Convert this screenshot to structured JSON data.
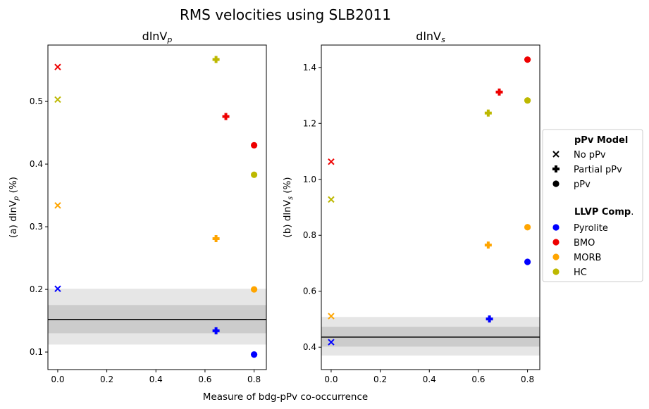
{
  "figure": {
    "title": "RMS velocities using SLB2011",
    "xlabel": "Measure of bdg-pPv co-occurrence"
  },
  "legend": {
    "marker_header": "pPv Model",
    "markers": [
      {
        "marker": "x",
        "label": "No pPv"
      },
      {
        "marker": "plus",
        "label": "Partial pPv"
      },
      {
        "marker": "circle",
        "label": "pPv"
      }
    ],
    "color_header_bold": "LLVP Comp",
    "color_header_suffix": ".",
    "colors": [
      {
        "label": "Pyrolite",
        "color": "#0000ff"
      },
      {
        "label": "BMO",
        "color": "#ee0000"
      },
      {
        "label": "MORB",
        "color": "#ffa500"
      },
      {
        "label": "HC",
        "color": "#bdb800"
      }
    ]
  },
  "chart_data": [
    {
      "type": "scatter",
      "title": "dlnV",
      "title_sub": "p",
      "ylabel": "(a) dlnV",
      "ylabel_sub": "p",
      "ylabel_suffix": " (%)",
      "xlim": [
        -0.04,
        0.85
      ],
      "ylim": [
        0.072,
        0.59
      ],
      "xticks": [
        "0.0",
        "0.2",
        "0.4",
        "0.6",
        "0.8"
      ],
      "xtick_values": [
        0.0,
        0.2,
        0.4,
        0.6,
        0.8
      ],
      "yticks": [
        "0.1",
        "0.2",
        "0.3",
        "0.4",
        "0.5"
      ],
      "ytick_values": [
        0.1,
        0.2,
        0.3,
        0.4,
        0.5
      ],
      "reference_line": 0.152,
      "inner_band": [
        0.13,
        0.175
      ],
      "outer_band": [
        0.112,
        0.201
      ],
      "points": [
        {
          "series": "BMO",
          "model": "No pPv",
          "x": 0.0,
          "y": 0.555
        },
        {
          "series": "HC",
          "model": "No pPv",
          "x": 0.0,
          "y": 0.503
        },
        {
          "series": "MORB",
          "model": "No pPv",
          "x": 0.0,
          "y": 0.334
        },
        {
          "series": "Pyrolite",
          "model": "No pPv",
          "x": 0.0,
          "y": 0.201
        },
        {
          "series": "HC",
          "model": "Partial pPv",
          "x": 0.645,
          "y": 0.567
        },
        {
          "series": "BMO",
          "model": "Partial pPv",
          "x": 0.685,
          "y": 0.476
        },
        {
          "series": "MORB",
          "model": "Partial pPv",
          "x": 0.645,
          "y": 0.281
        },
        {
          "series": "Pyrolite",
          "model": "Partial pPv",
          "x": 0.645,
          "y": 0.134
        },
        {
          "series": "BMO",
          "model": "pPv",
          "x": 0.8,
          "y": 0.43
        },
        {
          "series": "HC",
          "model": "pPv",
          "x": 0.8,
          "y": 0.383
        },
        {
          "series": "MORB",
          "model": "pPv",
          "x": 0.8,
          "y": 0.2
        },
        {
          "series": "Pyrolite",
          "model": "pPv",
          "x": 0.8,
          "y": 0.096
        }
      ]
    },
    {
      "type": "scatter",
      "title": "dlnV",
      "title_sub": "s",
      "ylabel": "(b) dlnV",
      "ylabel_sub": "s",
      "ylabel_suffix": " (%)",
      "xlim": [
        -0.04,
        0.85
      ],
      "ylim": [
        0.32,
        1.48
      ],
      "xticks": [
        "0.0",
        "0.2",
        "0.4",
        "0.6",
        "0.8"
      ],
      "xtick_values": [
        0.0,
        0.2,
        0.4,
        0.6,
        0.8
      ],
      "yticks": [
        "0.4",
        "0.6",
        "0.8",
        "1.0",
        "1.2",
        "1.4"
      ],
      "ytick_values": [
        0.4,
        0.6,
        0.8,
        1.0,
        1.2,
        1.4
      ],
      "reference_line": 0.436,
      "inner_band": [
        0.402,
        0.473
      ],
      "outer_band": [
        0.37,
        0.508
      ],
      "points": [
        {
          "series": "BMO",
          "model": "No pPv",
          "x": 0.0,
          "y": 1.063
        },
        {
          "series": "HC",
          "model": "No pPv",
          "x": 0.0,
          "y": 0.928
        },
        {
          "series": "MORB",
          "model": "No pPv",
          "x": 0.0,
          "y": 0.511
        },
        {
          "series": "Pyrolite",
          "model": "No pPv",
          "x": 0.0,
          "y": 0.418
        },
        {
          "series": "BMO",
          "model": "Partial pPv",
          "x": 0.685,
          "y": 1.312
        },
        {
          "series": "HC",
          "model": "Partial pPv",
          "x": 0.64,
          "y": 1.237
        },
        {
          "series": "MORB",
          "model": "Partial pPv",
          "x": 0.64,
          "y": 0.765
        },
        {
          "series": "Pyrolite",
          "model": "Partial pPv",
          "x": 0.645,
          "y": 0.501
        },
        {
          "series": "BMO",
          "model": "pPv",
          "x": 0.8,
          "y": 1.428
        },
        {
          "series": "HC",
          "model": "pPv",
          "x": 0.8,
          "y": 1.282
        },
        {
          "series": "MORB",
          "model": "pPv",
          "x": 0.8,
          "y": 0.829
        },
        {
          "series": "Pyrolite",
          "model": "pPv",
          "x": 0.8,
          "y": 0.705
        }
      ]
    }
  ]
}
